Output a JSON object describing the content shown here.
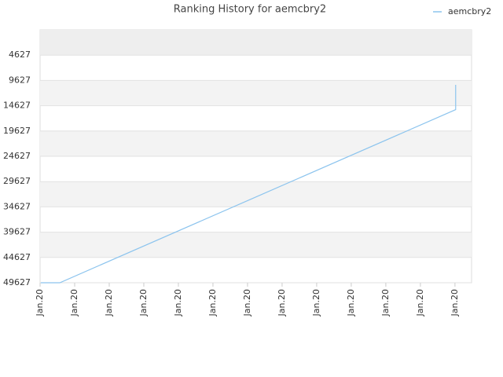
{
  "chart_data": {
    "type": "line",
    "title": "Ranking History for aemcbry2",
    "x": [
      0.02,
      0.57,
      12.02,
      12.02
    ],
    "series": [
      {
        "name": "aemcbry2",
        "color": "#8cc4ee",
        "values": [
          49627,
          49627,
          15400,
          10500
        ]
      }
    ],
    "xlim": [
      0,
      12.48
    ],
    "xticks": [
      {
        "value": 0,
        "label": "Jan.20"
      },
      {
        "value": 1,
        "label": "Jan.20"
      },
      {
        "value": 2,
        "label": "Jan.20"
      },
      {
        "value": 3,
        "label": "Jan.20"
      },
      {
        "value": 4,
        "label": "Jan.20"
      },
      {
        "value": 5,
        "label": "Jan.20"
      },
      {
        "value": 6,
        "label": "Jan.20"
      },
      {
        "value": 7,
        "label": "Jan.20"
      },
      {
        "value": 8,
        "label": "Jan.20"
      },
      {
        "value": 9,
        "label": "Jan.20"
      },
      {
        "value": 10,
        "label": "Jan.20"
      },
      {
        "value": 11,
        "label": "Jan.20"
      },
      {
        "value": 12,
        "label": "Jan.20"
      }
    ],
    "ylim": [
      49627,
      -373
    ],
    "yticks": [
      4627,
      9627,
      14627,
      19627,
      24627,
      29627,
      34627,
      39627,
      44627,
      49627
    ],
    "grid": true,
    "legend": "top-right"
  }
}
